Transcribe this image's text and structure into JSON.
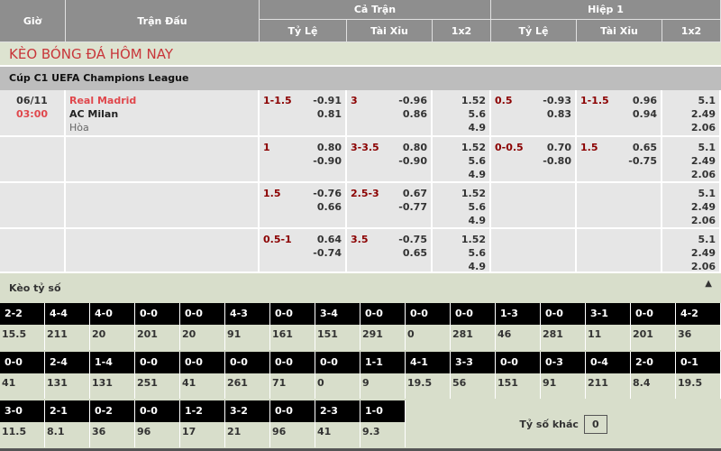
{
  "header": {
    "gio": "Giờ",
    "tran_dau": "Trận Đấu",
    "ca_tran": "Cả Trận",
    "hiep1": "Hiệp 1",
    "ty_le": "Tỷ Lệ",
    "tai_xiu": "Tài Xỉu",
    "x12": "1x2"
  },
  "title": "KÈO BÓNG ĐÁ HÔM NAY",
  "league": "Cúp C1 UEFA Champions League",
  "match": {
    "date": "06/11",
    "time": "03:00",
    "home": "Real Madrid",
    "away": "AC Milan",
    "draw": "Hòa"
  },
  "rows": [
    {
      "hdp": "1-1.5",
      "hdp_o": [
        "-0.91",
        "0.81"
      ],
      "ou": "3",
      "ou_o": [
        "-0.96",
        "0.86"
      ],
      "x12": [
        "1.52",
        "5.6",
        "4.9"
      ],
      "h1_hdp": "0.5",
      "h1_hdp_o": [
        "-0.93",
        "0.83"
      ],
      "h1_ou": "1-1.5",
      "h1_ou_o": [
        "0.96",
        "0.94"
      ],
      "h1_x12": [
        "5.1",
        "2.49",
        "2.06"
      ]
    },
    {
      "hdp": "1",
      "hdp_o": [
        "0.80",
        "-0.90"
      ],
      "ou": "3-3.5",
      "ou_o": [
        "0.80",
        "-0.90"
      ],
      "x12": [
        "1.52",
        "5.6",
        "4.9"
      ],
      "h1_hdp": "0-0.5",
      "h1_hdp_o": [
        "0.70",
        "-0.80"
      ],
      "h1_ou": "1.5",
      "h1_ou_o": [
        "0.65",
        "-0.75"
      ],
      "h1_x12": [
        "5.1",
        "2.49",
        "2.06"
      ]
    },
    {
      "hdp": "1.5",
      "hdp_o": [
        "-0.76",
        "0.66"
      ],
      "ou": "2.5-3",
      "ou_o": [
        "0.67",
        "-0.77"
      ],
      "x12": [
        "1.52",
        "5.6",
        "4.9"
      ],
      "h1_hdp": "",
      "h1_hdp_o": [
        "",
        ""
      ],
      "h1_ou": "",
      "h1_ou_o": [
        "",
        ""
      ],
      "h1_x12": [
        "5.1",
        "2.49",
        "2.06"
      ]
    },
    {
      "hdp": "0.5-1",
      "hdp_o": [
        "0.64",
        "-0.74"
      ],
      "ou": "3.5",
      "ou_o": [
        "-0.75",
        "0.65"
      ],
      "x12": [
        "1.52",
        "5.6",
        "4.9"
      ],
      "h1_hdp": "",
      "h1_hdp_o": [
        "",
        ""
      ],
      "h1_ou": "",
      "h1_ou_o": [
        "",
        ""
      ],
      "h1_x12": [
        "5.1",
        "2.49",
        "2.06"
      ]
    }
  ],
  "score_section": {
    "title": "Kèo tỷ số",
    "collapse_icon": "triangle-up",
    "other_label": "Tỷ số khác",
    "other_value": "0",
    "items": [
      [
        "2-2",
        "15.5"
      ],
      [
        "4-4",
        "211"
      ],
      [
        "4-0",
        "20"
      ],
      [
        "0-0",
        "201"
      ],
      [
        "0-0",
        "20"
      ],
      [
        "4-3",
        "91"
      ],
      [
        "0-0",
        "161"
      ],
      [
        "3-4",
        "151"
      ],
      [
        "0-0",
        "291"
      ],
      [
        "0-0",
        "0"
      ],
      [
        "0-0",
        "281"
      ],
      [
        "1-3",
        "46"
      ],
      [
        "0-0",
        "281"
      ],
      [
        "3-1",
        "11"
      ],
      [
        "0-0",
        "201"
      ],
      [
        "4-2",
        "36"
      ],
      [
        "0-0",
        "41"
      ],
      [
        "2-4",
        "131"
      ],
      [
        "1-4",
        "131"
      ],
      [
        "0-0",
        "251"
      ],
      [
        "0-0",
        "41"
      ],
      [
        "0-0",
        "261"
      ],
      [
        "0-0",
        "71"
      ],
      [
        "0-0",
        "0"
      ],
      [
        "1-1",
        "9"
      ],
      [
        "4-1",
        "19.5"
      ],
      [
        "3-3",
        "56"
      ],
      [
        "0-0",
        "151"
      ],
      [
        "0-3",
        "91"
      ],
      [
        "0-4",
        "211"
      ],
      [
        "2-0",
        "8.4"
      ],
      [
        "0-1",
        "19.5"
      ],
      [
        "3-0",
        "11.5"
      ],
      [
        "2-1",
        "8.1"
      ],
      [
        "0-2",
        "36"
      ],
      [
        "0-0",
        "96"
      ],
      [
        "1-2",
        "17"
      ],
      [
        "3-2",
        "21"
      ],
      [
        "0-0",
        "96"
      ],
      [
        "2-3",
        "41"
      ],
      [
        "1-0",
        "9.3"
      ]
    ]
  },
  "colors": {
    "header": "#8e8e8e",
    "title_red": "#c8363a",
    "odds_red": "#8b0000",
    "home_red": "#e0474c",
    "score_bg": "#d8decb"
  }
}
